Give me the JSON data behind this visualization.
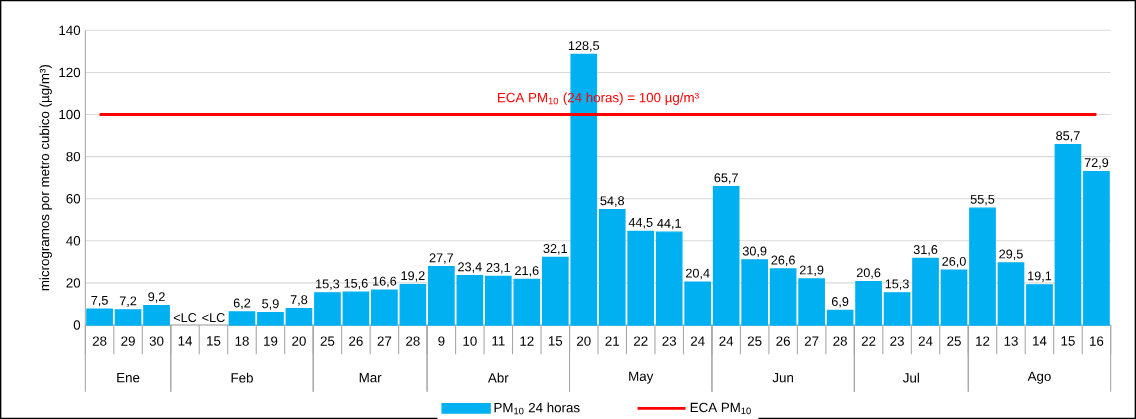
{
  "chart_data": {
    "type": "bar",
    "ylabel": "microgramos por metro cubico  (µg/m³)",
    "categories": [
      "28",
      "29",
      "30",
      "14",
      "15",
      "18",
      "19",
      "20",
      "25",
      "26",
      "27",
      "28",
      "9",
      "10",
      "11",
      "12",
      "15",
      "20",
      "21",
      "22",
      "23",
      "24",
      "24",
      "25",
      "26",
      "27",
      "28",
      "22",
      "23",
      "24",
      "25",
      "12",
      "13",
      "14",
      "15",
      "16"
    ],
    "series": [
      {
        "name": "PM$_{10}$ 24 horas",
        "color": "#00b0f0",
        "values": [
          7.5,
          7.2,
          9.2,
          null,
          null,
          6.2,
          5.9,
          7.8,
          15.3,
          15.6,
          16.6,
          19.2,
          27.7,
          23.4,
          23.1,
          21.6,
          32.1,
          128.5,
          54.8,
          44.5,
          44.1,
          20.4,
          65.7,
          30.9,
          26.6,
          21.9,
          6.9,
          20.6,
          15.3,
          31.6,
          26.0,
          55.5,
          29.5,
          19.1,
          85.7,
          72.9
        ],
        "value_labels": [
          "7,5",
          "7,2",
          "9,2",
          "<LC",
          "<LC",
          "6,2",
          "5,9",
          "7,8",
          "15,3",
          "15,6",
          "16,6",
          "19,2",
          "27,7",
          "23,4",
          "23,1",
          "21,6",
          "32,1",
          "128,5",
          "54,8",
          "44,5",
          "44,1",
          "20,4",
          "65,7",
          "30,9",
          "26,6",
          "21,9",
          "6,9",
          "20,6",
          "15,3",
          "31,6",
          "26,0",
          "55,5",
          "29,5",
          "19,1",
          "85,7",
          "72,9"
        ]
      },
      {
        "name": "ECA PM$_{10}$",
        "type": "line",
        "color": "#ff0000",
        "values": [
          100,
          100,
          100,
          100,
          100,
          100,
          100,
          100,
          100,
          100,
          100,
          100,
          100,
          100,
          100,
          100,
          100,
          100,
          100,
          100,
          100,
          100,
          100,
          100,
          100,
          100,
          100,
          100,
          100,
          100,
          100,
          100,
          100,
          100,
          100,
          100
        ]
      }
    ],
    "annotations": [
      {
        "text": "ECA PM$_{10}$ (24 horas) = 100 µg/m³",
        "y": 100
      },
      "Ene",
      "Feb",
      "Mar",
      "Abr",
      "May",
      "Jun",
      "Jul",
      "Ago"
    ],
    "ylim": [
      0,
      140
    ],
    "yticks": [
      0,
      20,
      40,
      60,
      80,
      100,
      120,
      140
    ],
    "grid": "y",
    "legend": "bottom"
  }
}
